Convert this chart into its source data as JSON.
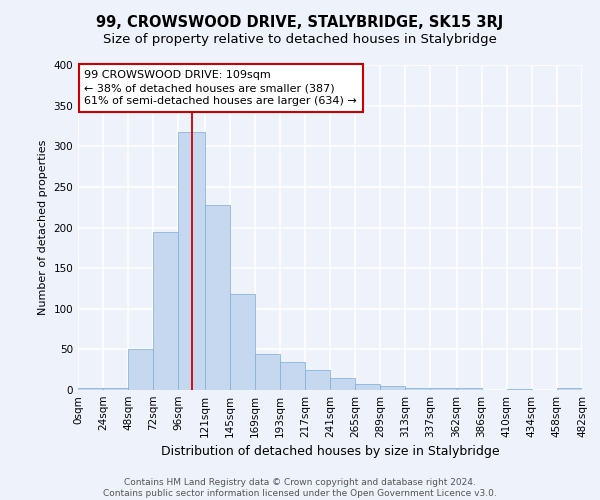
{
  "title": "99, CROWSWOOD DRIVE, STALYBRIDGE, SK15 3RJ",
  "subtitle": "Size of property relative to detached houses in Stalybridge",
  "xlabel": "Distribution of detached houses by size in Stalybridge",
  "ylabel": "Number of detached properties",
  "bar_color": "#c5d8f0",
  "bar_edge_color": "#7aadd4",
  "background_color": "#eef2fa",
  "grid_color": "#ffffff",
  "bin_edges": [
    0,
    24,
    48,
    72,
    96,
    121,
    145,
    169,
    193,
    217,
    241,
    265,
    289,
    313,
    337,
    362,
    386,
    410,
    434,
    458,
    482
  ],
  "bin_labels": [
    "0sqm",
    "24sqm",
    "48sqm",
    "72sqm",
    "96sqm",
    "121sqm",
    "145sqm",
    "169sqm",
    "193sqm",
    "217sqm",
    "241sqm",
    "265sqm",
    "289sqm",
    "313sqm",
    "337sqm",
    "362sqm",
    "386sqm",
    "410sqm",
    "434sqm",
    "458sqm",
    "482sqm"
  ],
  "counts": [
    2,
    2,
    50,
    195,
    318,
    228,
    118,
    44,
    35,
    25,
    15,
    8,
    5,
    3,
    2,
    2,
    0,
    1,
    0,
    2
  ],
  "property_size": 109,
  "vline_color": "#cc0000",
  "annotation_line1": "99 CROWSWOOD DRIVE: 109sqm",
  "annotation_line2": "← 38% of detached houses are smaller (387)",
  "annotation_line3": "61% of semi-detached houses are larger (634) →",
  "annotation_box_color": "#ffffff",
  "annotation_box_edge": "#cc0000",
  "ylim": [
    0,
    400
  ],
  "yticks": [
    0,
    50,
    100,
    150,
    200,
    250,
    300,
    350,
    400
  ],
  "footer_line1": "Contains HM Land Registry data © Crown copyright and database right 2024.",
  "footer_line2": "Contains public sector information licensed under the Open Government Licence v3.0.",
  "title_fontsize": 10.5,
  "subtitle_fontsize": 9.5,
  "xlabel_fontsize": 9,
  "ylabel_fontsize": 8,
  "tick_fontsize": 7.5,
  "annotation_fontsize": 8,
  "footer_fontsize": 6.5
}
